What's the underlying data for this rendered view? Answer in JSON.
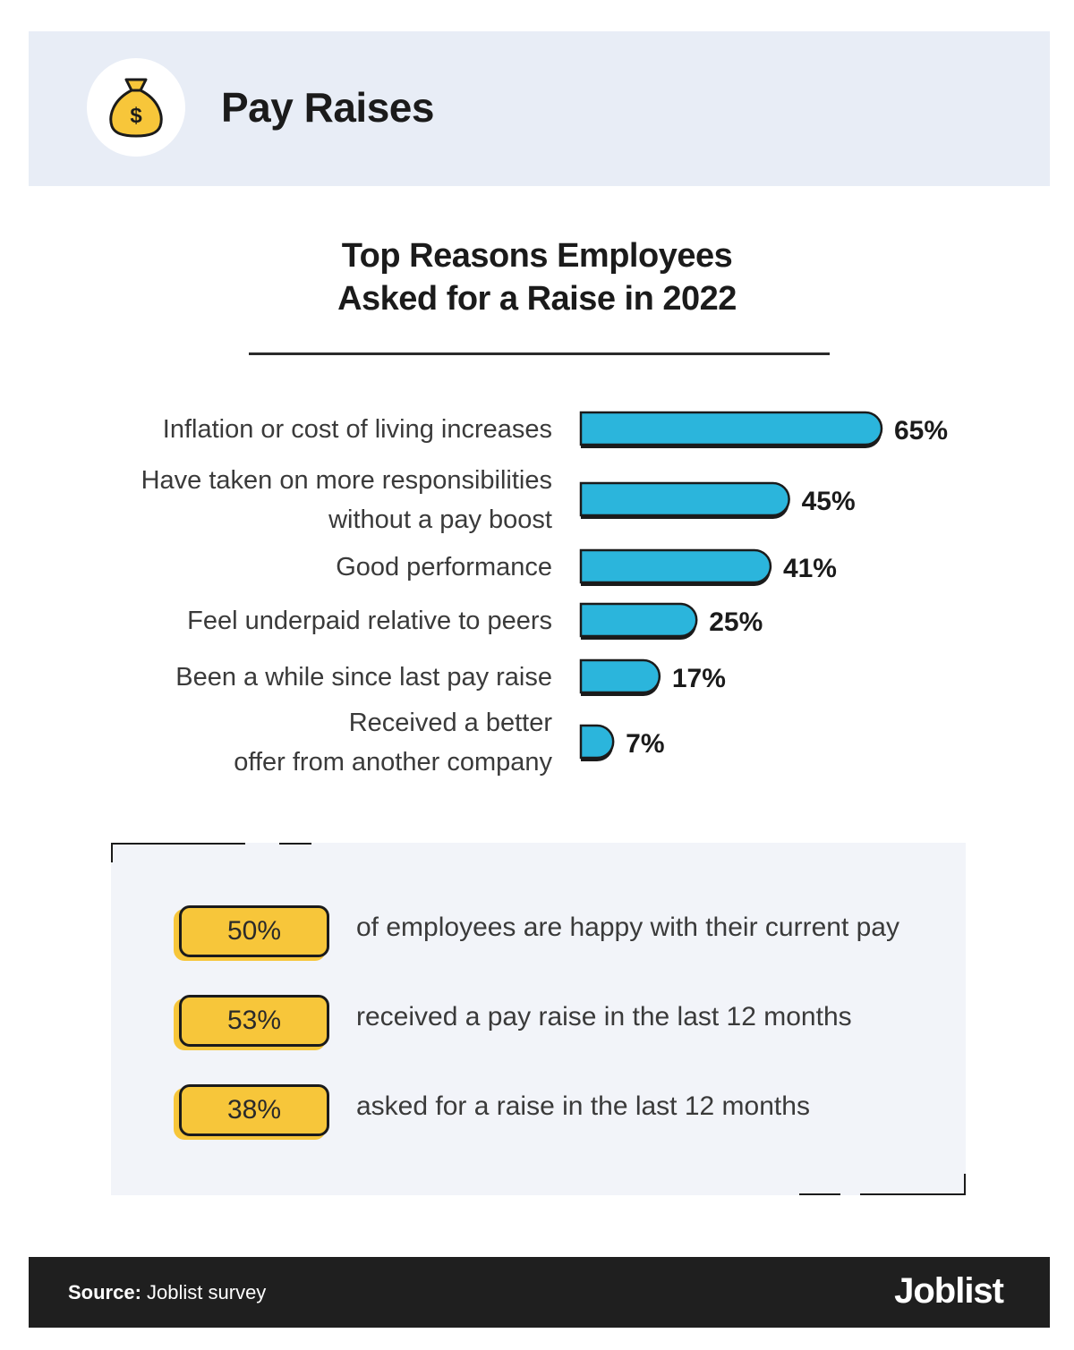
{
  "header": {
    "title": "Pay Raises",
    "icon": "money-bag-icon",
    "background": "#e8edf6",
    "icon_color": "#f7c63a"
  },
  "chart_data": {
    "type": "bar",
    "orientation": "horizontal",
    "title_lines": [
      "Top Reasons Employees",
      "Asked for a Raise in 2022"
    ],
    "categories": [
      [
        "Inflation or cost of living increases"
      ],
      [
        "Have taken on more responsibilities",
        "without a pay boost"
      ],
      [
        "Good performance"
      ],
      [
        "Feel underpaid relative to peers"
      ],
      [
        "Been a while since last pay raise"
      ],
      [
        "Received a better",
        "offer from another company"
      ]
    ],
    "values": [
      65,
      45,
      41,
      25,
      17,
      7
    ],
    "value_labels": [
      "65%",
      "45%",
      "41%",
      "25%",
      "17%",
      "7%"
    ],
    "unit": "%",
    "xlim": [
      0,
      65
    ],
    "bar_color": "#2bb5dc",
    "grid": false,
    "legend": "none"
  },
  "stats": [
    {
      "value": "50%",
      "text": "of employees are happy with their current pay"
    },
    {
      "value": "53%",
      "text": "received a pay raise in the last 12 months"
    },
    {
      "value": "38%",
      "text": "asked for a raise in the last 12 months"
    }
  ],
  "footer": {
    "source_label": "Source:",
    "source_text": " Joblist survey",
    "brand": "Joblist"
  }
}
